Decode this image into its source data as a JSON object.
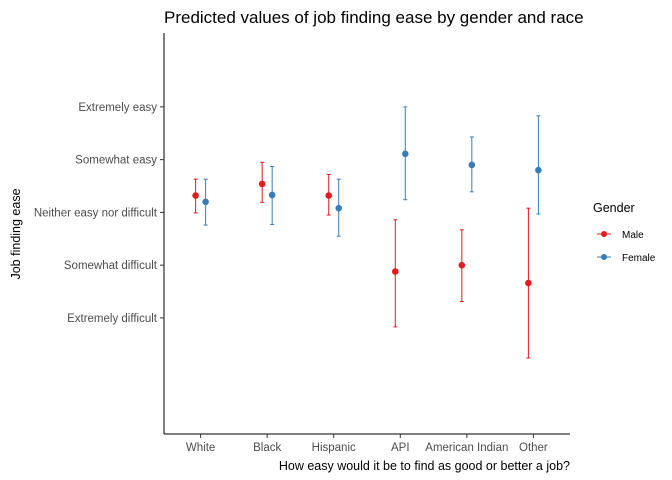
{
  "chart_data": {
    "type": "scatter",
    "title": "Predicted values of job finding ease by gender and race",
    "xlabel": "How easy would it be to find as good or better a job?",
    "ylabel": "Job finding ease",
    "categories": [
      "White",
      "Black",
      "Hispanic",
      "API",
      "American Indian",
      "Other"
    ],
    "y_ticks": [
      {
        "value": 1,
        "label": "Extremely difficult"
      },
      {
        "value": 2,
        "label": "Somewhat difficult"
      },
      {
        "value": 3,
        "label": "Neither easy nor difficult"
      },
      {
        "value": 4,
        "label": "Somewhat easy"
      },
      {
        "value": 5,
        "label": "Extremely easy"
      }
    ],
    "ylim": [
      -1.2,
      6.4
    ],
    "grid": false,
    "legend": {
      "title": "Gender",
      "position": "right"
    },
    "series": [
      {
        "name": "Male",
        "color": "#E41A1C",
        "values": [
          3.32,
          3.54,
          3.32,
          1.88,
          2.0,
          1.66
        ],
        "lower": [
          2.99,
          3.19,
          2.95,
          0.83,
          1.31,
          0.24
        ],
        "upper": [
          3.63,
          3.95,
          3.72,
          2.86,
          2.67,
          3.08
        ]
      },
      {
        "name": "Female",
        "color": "#377EB8",
        "values": [
          3.2,
          3.33,
          3.08,
          4.11,
          3.9,
          3.8
        ],
        "lower": [
          2.76,
          2.77,
          2.55,
          3.24,
          3.39,
          2.97
        ],
        "upper": [
          3.63,
          3.87,
          3.63,
          5.0,
          4.43,
          4.83
        ]
      }
    ]
  }
}
